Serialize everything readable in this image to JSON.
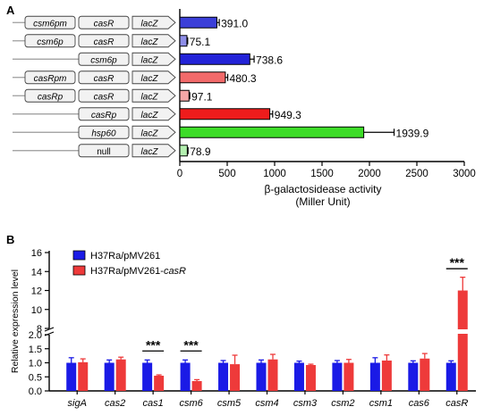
{
  "chart_data": [
    {
      "panel": "A",
      "type": "bar",
      "orientation": "horizontal",
      "xlabel": "β-galactosidease activity",
      "xlabel_unit": "(Miller Unit)",
      "xlim": [
        0,
        3000
      ],
      "xticks": [
        "0",
        "500",
        "1000",
        "1500",
        "2000",
        "2500",
        "3000"
      ],
      "grid": false,
      "rows": [
        {
          "elements": [
            "csm6pm",
            "casR",
            "lacZ"
          ],
          "value": 391.0,
          "label": "391.0",
          "error": 25,
          "color": "#3b3fd8"
        },
        {
          "elements": [
            "csm6p",
            "casR",
            "lacZ"
          ],
          "value": 75.1,
          "label": "75.1",
          "error": 8,
          "color": "#8e8ee8"
        },
        {
          "elements": [
            "csm6p",
            "lacZ"
          ],
          "value": 738.6,
          "label": "738.6",
          "error": 45,
          "color": "#2323d8"
        },
        {
          "elements": [
            "casRpm",
            "casR",
            "lacZ"
          ],
          "value": 480.3,
          "label": "480.3",
          "error": 25,
          "color": "#f26a6a"
        },
        {
          "elements": [
            "casRp",
            "casR",
            "lacZ"
          ],
          "value": 97.1,
          "label": "97.1",
          "error": 8,
          "color": "#f4a7a7"
        },
        {
          "elements": [
            "casRp",
            "lacZ"
          ],
          "value": 949.3,
          "label": "949.3",
          "error": 30,
          "color": "#ee1c1c"
        },
        {
          "elements": [
            "hsp60",
            "lacZ"
          ],
          "value": 1939.9,
          "label": "1939.9",
          "error": 320,
          "color": "#3ddc28"
        },
        {
          "elements": [
            "null",
            "lacZ"
          ],
          "value": 78.9,
          "label": "78.9",
          "error": 8,
          "color": "#b4f0b0"
        }
      ]
    },
    {
      "panel": "B",
      "type": "bar",
      "orientation": "vertical",
      "ylabel": "Relative expression level",
      "axis_break": {
        "lower": [
          0,
          2.0
        ],
        "upper": [
          8,
          16
        ]
      },
      "yticks_lower": [
        "0.0",
        "0.5",
        "1.0",
        "1.5",
        "2.0"
      ],
      "yticks_upper": [
        "8",
        "10",
        "12",
        "14",
        "16"
      ],
      "categories": [
        "sigA",
        "cas2",
        "cas1",
        "csm6",
        "csm5",
        "csm4",
        "csm3",
        "csm2",
        "csm1",
        "cas6",
        "casR"
      ],
      "legend_position": "top-left",
      "series": [
        {
          "name": "H37Ra/pMV261",
          "color": "#1a1ae6",
          "values": [
            1.0,
            1.0,
            1.0,
            1.0,
            1.0,
            1.0,
            1.0,
            1.0,
            1.0,
            1.0,
            1.0
          ],
          "errors": [
            0.18,
            0.1,
            0.1,
            0.1,
            0.08,
            0.1,
            0.06,
            0.08,
            0.18,
            0.07,
            0.07
          ]
        },
        {
          "name_prefix": "H37Ra/pMV261-",
          "name_italic": "casR",
          "color": "#ee3a3a",
          "values": [
            1.02,
            1.12,
            0.54,
            0.35,
            0.95,
            1.12,
            0.92,
            1.0,
            1.08,
            1.15,
            12.0
          ],
          "errors": [
            0.12,
            0.08,
            0.03,
            0.05,
            0.32,
            0.18,
            0.03,
            0.12,
            0.2,
            0.18,
            1.4
          ]
        }
      ],
      "significance": [
        {
          "category": "cas1",
          "label": "***"
        },
        {
          "category": "csm6",
          "label": "***"
        },
        {
          "category": "casR",
          "label": "***"
        }
      ]
    }
  ],
  "panel_labels": {
    "a": "A",
    "b": "B"
  }
}
